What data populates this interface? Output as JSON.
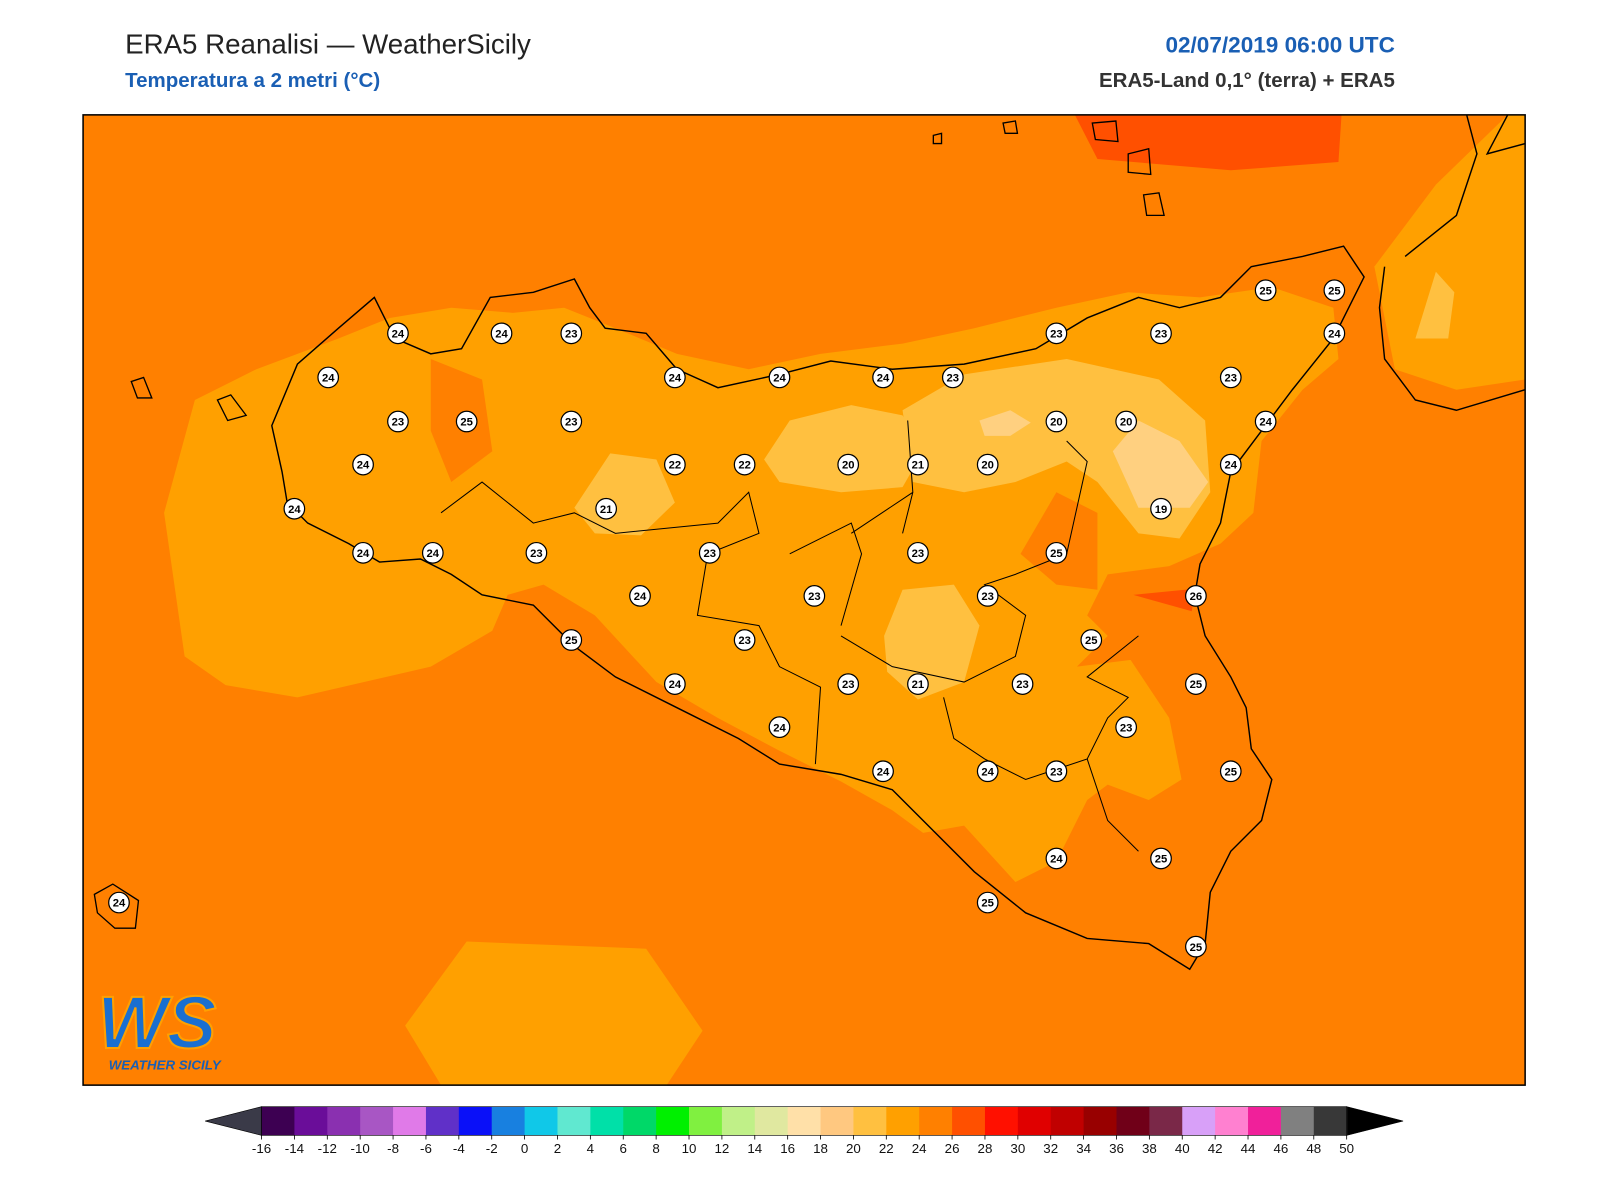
{
  "header": {
    "title": "ERA5 Reanalisi — WeatherSicily",
    "subtitle": "Temperatura a 2 metri (°C)",
    "datetime": "02/07/2019 06:00 UTC",
    "source": "ERA5-Land 0,1° (terra) + ERA5"
  },
  "stations": [
    24,
    24,
    23,
    24,
    23,
    25,
    23,
    24,
    24,
    24,
    24,
    23,
    24,
    24,
    24,
    23,
    23,
    23,
    25,
    25,
    24,
    23,
    20,
    20,
    24,
    22,
    22,
    20,
    21,
    20,
    24,
    21,
    19,
    23,
    23,
    25,
    24,
    23,
    23,
    26,
    25,
    23,
    25,
    24,
    23,
    21,
    23,
    25,
    24,
    23,
    24,
    24,
    23,
    25,
    24,
    25,
    25,
    25,
    24
  ],
  "colorbar": {
    "ticks": [
      -16,
      -14,
      -12,
      -10,
      -8,
      -6,
      -4,
      -2,
      0,
      2,
      4,
      6,
      8,
      10,
      12,
      14,
      16,
      18,
      20,
      22,
      24,
      26,
      28,
      30,
      32,
      34,
      36,
      38,
      40,
      42,
      44,
      46,
      48,
      50
    ],
    "colors": [
      "#3d0052",
      "#6a0d99",
      "#8a30b0",
      "#a856c4",
      "#e07ae8",
      "#6030c8",
      "#0a10f8",
      "#1880e0",
      "#10c8e8",
      "#60e8d0",
      "#00e0a8",
      "#00d868",
      "#00f000",
      "#80f040",
      "#c0f088",
      "#e0e8a0",
      "#ffe0a8",
      "#ffc880",
      "#ffc040",
      "#ffa000",
      "#ff8000",
      "#ff5000",
      "#ff1000",
      "#e00000",
      "#c00000",
      "#980000",
      "#700018",
      "#7a2848",
      "#d8a0f8",
      "#ff80d0",
      "#f0209a",
      "#808080",
      "#383838"
    ],
    "under_color": "#3a3a48",
    "over_color": "#000000"
  },
  "logo": {
    "mark": "WS",
    "text": "WEATHER SICILY"
  }
}
